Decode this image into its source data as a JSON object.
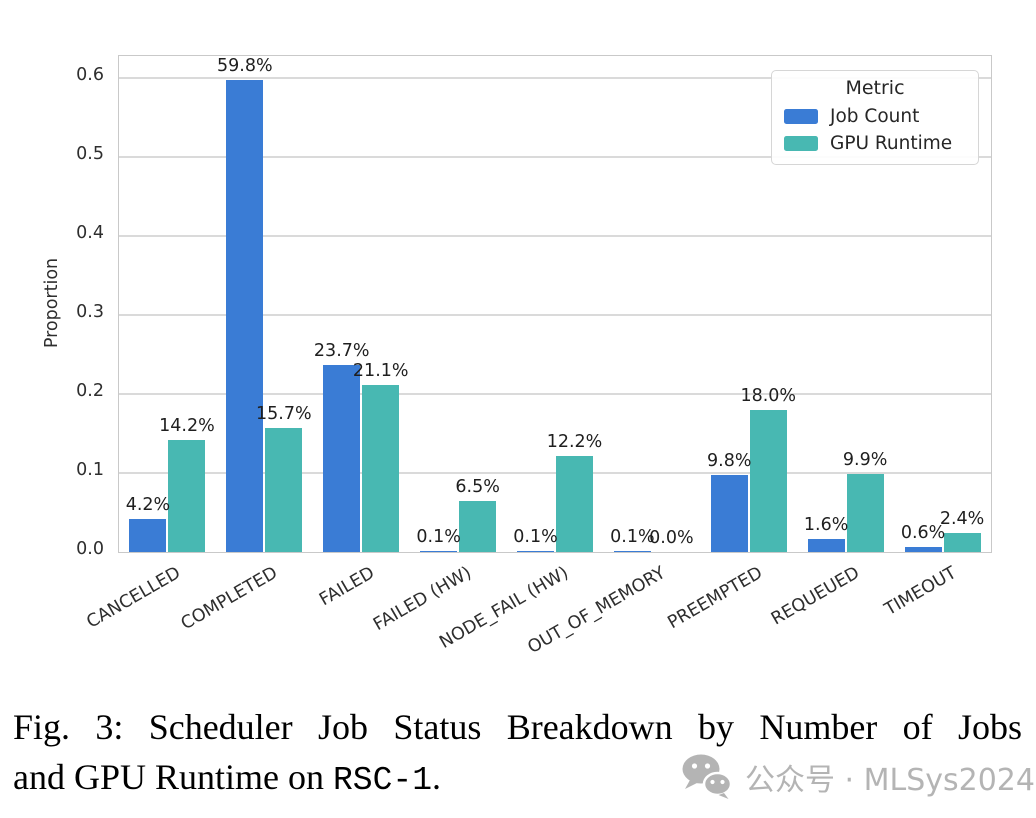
{
  "figure": {
    "caption": {
      "line1": "Fig. 3: Scheduler Job Status Breakdown by Number of Jobs",
      "line2_prefix": "and GPU Runtime on ",
      "code": "RSC-1",
      "suffix": "."
    }
  },
  "watermark": {
    "icon": "wechat-icon",
    "text": "公众号 · MLSys2024",
    "color": "#b4b4b4"
  },
  "chart_data": {
    "type": "bar",
    "title": "",
    "xlabel": "",
    "ylabel": "Proportion",
    "ylim": [
      0.0,
      0.628
    ],
    "yticks": [
      0.0,
      0.1,
      0.2,
      0.3,
      0.4,
      0.5,
      0.6
    ],
    "grid": true,
    "legend": {
      "title": "Metric",
      "position": "upper right"
    },
    "categories": [
      "CANCELLED",
      "COMPLETED",
      "FAILED",
      "FAILED (HW)",
      "NODE_FAIL (HW)",
      "OUT_OF_MEMORY",
      "PREEMPTED",
      "REQUEUED",
      "TIMEOUT"
    ],
    "series": [
      {
        "name": "Job Count",
        "color": "#3a7cd5",
        "values": [
          0.042,
          0.598,
          0.237,
          0.001,
          0.001,
          0.001,
          0.098,
          0.016,
          0.006
        ],
        "labels": [
          "4.2%",
          "59.8%",
          "23.7%",
          "0.1%",
          "0.1%",
          "0.1%",
          "9.8%",
          "1.6%",
          "0.6%"
        ]
      },
      {
        "name": "GPU Runtime",
        "color": "#48b8b2",
        "values": [
          0.142,
          0.157,
          0.211,
          0.065,
          0.122,
          0.0,
          0.18,
          0.099,
          0.024
        ],
        "labels": [
          "14.2%",
          "15.7%",
          "21.1%",
          "6.5%",
          "12.2%",
          "0.0%",
          "18.0%",
          "9.9%",
          "2.4%"
        ]
      }
    ]
  }
}
